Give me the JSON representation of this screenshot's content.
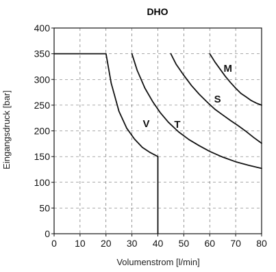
{
  "chart_data": {
    "type": "line",
    "title": "DHO",
    "xlabel": "Volumenstrom [l/min]",
    "ylabel": "Eingangsdruck [bar]",
    "xlim": [
      0,
      80
    ],
    "ylim": [
      0,
      400
    ],
    "xticks": [
      "0",
      "10",
      "20",
      "30",
      "40",
      "50",
      "60",
      "70",
      "80"
    ],
    "yticks": [
      "0",
      "50",
      "100",
      "150",
      "200",
      "250",
      "300",
      "350",
      "400"
    ],
    "grid": true,
    "series": [
      {
        "name": "V",
        "x": [
          0,
          20,
          22,
          25,
          28,
          31,
          34,
          37,
          40,
          40
        ],
        "y": [
          350,
          350,
          293,
          238,
          205,
          184,
          168,
          158,
          150,
          0
        ]
      },
      {
        "name": "T",
        "x": [
          30,
          32,
          35,
          38,
          41,
          44,
          48,
          52,
          56,
          60,
          65,
          70,
          75,
          80
        ],
        "y": [
          350,
          318,
          283,
          257,
          235,
          217,
          198,
          183,
          171,
          160,
          149,
          140,
          133,
          127
        ]
      },
      {
        "name": "S",
        "x": [
          45,
          47,
          50,
          53,
          56,
          59,
          62,
          65,
          68,
          71,
          74,
          77,
          80
        ],
        "y": [
          350,
          330,
          308,
          288,
          271,
          256,
          242,
          231,
          220,
          210,
          199,
          187,
          176
        ]
      },
      {
        "name": "M",
        "x": [
          60,
          62,
          64,
          66,
          68,
          70,
          72,
          74,
          76,
          78,
          80
        ],
        "y": [
          350,
          334,
          320,
          306,
          294,
          283,
          273,
          266,
          259,
          254,
          250
        ]
      }
    ],
    "series_labels": [
      {
        "text": "V",
        "x": 35.5,
        "y": 207
      },
      {
        "text": "T",
        "x": 47.5,
        "y": 206
      },
      {
        "text": "S",
        "x": 63,
        "y": 255
      },
      {
        "text": "M",
        "x": 67,
        "y": 315
      }
    ]
  }
}
